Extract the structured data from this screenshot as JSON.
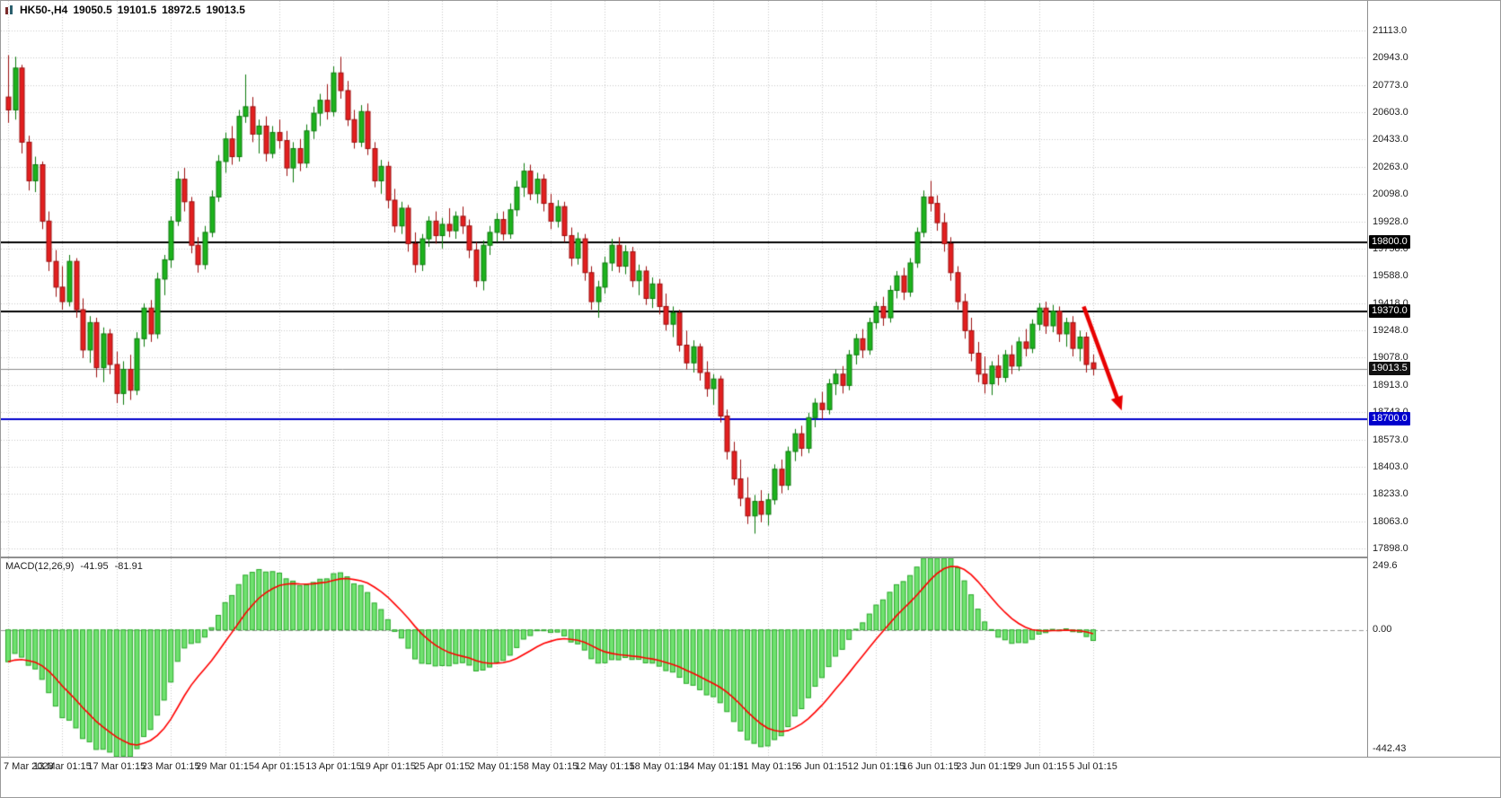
{
  "title": {
    "symbol_tf": "HK50-,H4",
    "open": "19050.5",
    "high": "19101.5",
    "low": "18972.5",
    "close": "19013.5"
  },
  "macd": {
    "name": "MACD(12,26,9)",
    "value": "-41.95",
    "signal_value": "-81.91"
  },
  "chart_data": {
    "type": "candlestick",
    "symbol": "HK50",
    "timeframe": "H4",
    "y_axis": {
      "top_value": 21113.0,
      "bottom_value": 17898.0,
      "ticks": [
        "21113.0",
        "20943.0",
        "20773.0",
        "20603.0",
        "20433.0",
        "20263.0",
        "20098.0",
        "19928.0",
        "19758.0",
        "19588.0",
        "19418.0",
        "19248.0",
        "19078.0",
        "18913.0",
        "18743.0",
        "18573.0",
        "18403.0",
        "18233.0",
        "18063.0",
        "17898.0"
      ]
    },
    "x_axis": {
      "label_every_bars": 8,
      "labels": [
        "7 Mar 2023",
        "13 Mar 01:15",
        "17 Mar 01:15",
        "23 Mar 01:15",
        "29 Mar 01:15",
        "4 Apr 01:15",
        "13 Apr 01:15",
        "19 Apr 01:15",
        "25 Apr 01:15",
        "2 May 01:15",
        "8 May 01:15",
        "12 May 01:15",
        "18 May 01:15",
        "24 May 01:15",
        "31 May 01:15",
        "6 Jun 01:15",
        "12 Jun 01:15",
        "16 Jun 01:15",
        "23 Jun 01:15",
        "29 Jun 01:15",
        "5 Jul 01:15"
      ]
    },
    "levels": [
      {
        "price": 19800.0,
        "label": "19800.0",
        "badge": "#000000",
        "line": "#000000",
        "width": 2
      },
      {
        "price": 19370.0,
        "label": "19370.0",
        "badge": "#000000",
        "line": "#000000",
        "width": 2
      },
      {
        "price": 18700.0,
        "label": "18700.0",
        "badge": "#0000cc",
        "line": "#0000cc",
        "width": 2
      },
      {
        "price": 19013.5,
        "label": "19013.5",
        "badge": "#111111",
        "line": "#8a8a8a",
        "width": 1
      }
    ],
    "annotations": {
      "arrow": {
        "from_bar": 158.6,
        "from_price": 19400,
        "to_bar": 164.2,
        "to_price": 18755,
        "color": "#e80000"
      }
    },
    "indicator": {
      "type": "macd",
      "params": [
        12,
        26,
        9
      ],
      "scale_max": 249.6,
      "scale_min": -442.43,
      "ticks": [
        "249.6",
        "0.00",
        "-442.43"
      ],
      "start_value": -120
    },
    "colors": {
      "background": "#ffffff",
      "grid": "#c9c9c9",
      "bull_body": "#1db31d",
      "bull_border": "#0d7a0d",
      "bear_body": "#e32020",
      "bear_border": "#9c0f0f",
      "hist_fill": "#6fe26f",
      "hist_border": "#2aa82a",
      "signal_line": "#ff0000"
    },
    "candles": [
      [
        20700,
        20960,
        20540,
        20620
      ],
      [
        20620,
        20950,
        20560,
        20880
      ],
      [
        20880,
        20900,
        20350,
        20420
      ],
      [
        20420,
        20460,
        20120,
        20180
      ],
      [
        20180,
        20330,
        20110,
        20280
      ],
      [
        20280,
        20300,
        19880,
        19930
      ],
      [
        19930,
        19990,
        19620,
        19680
      ],
      [
        19680,
        19750,
        19460,
        19520
      ],
      [
        19520,
        19650,
        19380,
        19430
      ],
      [
        19430,
        19720,
        19400,
        19680
      ],
      [
        19680,
        19700,
        19330,
        19380
      ],
      [
        19380,
        19450,
        19080,
        19130
      ],
      [
        19130,
        19340,
        19050,
        19300
      ],
      [
        19300,
        19330,
        18960,
        19020
      ],
      [
        19020,
        19270,
        18930,
        19230
      ],
      [
        19230,
        19260,
        18980,
        19040
      ],
      [
        19040,
        19120,
        18800,
        18860
      ],
      [
        18860,
        19060,
        18790,
        19010
      ],
      [
        19010,
        19100,
        18820,
        18880
      ],
      [
        18880,
        19240,
        18850,
        19200
      ],
      [
        19200,
        19420,
        19150,
        19390
      ],
      [
        19390,
        19440,
        19180,
        19230
      ],
      [
        19230,
        19610,
        19200,
        19570
      ],
      [
        19570,
        19720,
        19470,
        19690
      ],
      [
        19690,
        19960,
        19640,
        19930
      ],
      [
        19930,
        20240,
        19900,
        20190
      ],
      [
        20190,
        20260,
        19990,
        20050
      ],
      [
        20050,
        20080,
        19730,
        19780
      ],
      [
        19780,
        19830,
        19610,
        19660
      ],
      [
        19660,
        19900,
        19630,
        19860
      ],
      [
        19860,
        20120,
        19830,
        20080
      ],
      [
        20080,
        20340,
        20050,
        20300
      ],
      [
        20300,
        20480,
        20230,
        20440
      ],
      [
        20440,
        20520,
        20280,
        20330
      ],
      [
        20330,
        20620,
        20300,
        20580
      ],
      [
        20580,
        20840,
        20540,
        20640
      ],
      [
        20640,
        20700,
        20420,
        20470
      ],
      [
        20470,
        20560,
        20350,
        20520
      ],
      [
        20520,
        20580,
        20300,
        20350
      ],
      [
        20350,
        20520,
        20320,
        20480
      ],
      [
        20480,
        20560,
        20380,
        20430
      ],
      [
        20430,
        20490,
        20210,
        20260
      ],
      [
        20260,
        20420,
        20170,
        20380
      ],
      [
        20380,
        20440,
        20240,
        20290
      ],
      [
        20290,
        20530,
        20260,
        20490
      ],
      [
        20490,
        20640,
        20440,
        20600
      ],
      [
        20600,
        20720,
        20520,
        20680
      ],
      [
        20680,
        20780,
        20560,
        20610
      ],
      [
        20610,
        20890,
        20580,
        20850
      ],
      [
        20850,
        20950,
        20690,
        20740
      ],
      [
        20740,
        20800,
        20520,
        20560
      ],
      [
        20560,
        20620,
        20380,
        20420
      ],
      [
        20420,
        20650,
        20390,
        20610
      ],
      [
        20610,
        20660,
        20340,
        20380
      ],
      [
        20380,
        20420,
        20140,
        20180
      ],
      [
        20180,
        20310,
        20100,
        20270
      ],
      [
        20270,
        20300,
        20010,
        20060
      ],
      [
        20060,
        20130,
        19860,
        19900
      ],
      [
        19900,
        20050,
        19850,
        20010
      ],
      [
        20010,
        20030,
        19740,
        19790
      ],
      [
        19790,
        19860,
        19610,
        19660
      ],
      [
        19660,
        19850,
        19620,
        19820
      ],
      [
        19820,
        19960,
        19770,
        19930
      ],
      [
        19930,
        19990,
        19790,
        19840
      ],
      [
        19840,
        19950,
        19760,
        19910
      ],
      [
        19910,
        20010,
        19830,
        19870
      ],
      [
        19870,
        19990,
        19820,
        19960
      ],
      [
        19960,
        20020,
        19850,
        19900
      ],
      [
        19900,
        19940,
        19700,
        19750
      ],
      [
        19750,
        19800,
        19520,
        19560
      ],
      [
        19560,
        19810,
        19500,
        19780
      ],
      [
        19780,
        19900,
        19720,
        19860
      ],
      [
        19860,
        19980,
        19800,
        19940
      ],
      [
        19940,
        19990,
        19810,
        19850
      ],
      [
        19850,
        20040,
        19820,
        20000
      ],
      [
        20000,
        20180,
        19960,
        20140
      ],
      [
        20140,
        20290,
        20080,
        20240
      ],
      [
        20240,
        20280,
        20060,
        20100
      ],
      [
        20100,
        20230,
        20040,
        20190
      ],
      [
        20190,
        20220,
        19990,
        20040
      ],
      [
        20040,
        20100,
        19880,
        19930
      ],
      [
        19930,
        20060,
        19890,
        20020
      ],
      [
        20020,
        20050,
        19800,
        19840
      ],
      [
        19840,
        19890,
        19650,
        19700
      ],
      [
        19700,
        19860,
        19660,
        19820
      ],
      [
        19820,
        19850,
        19560,
        19610
      ],
      [
        19610,
        19650,
        19380,
        19430
      ],
      [
        19430,
        19560,
        19330,
        19520
      ],
      [
        19520,
        19710,
        19480,
        19670
      ],
      [
        19670,
        19820,
        19620,
        19780
      ],
      [
        19780,
        19830,
        19610,
        19650
      ],
      [
        19650,
        19780,
        19600,
        19740
      ],
      [
        19740,
        19770,
        19520,
        19560
      ],
      [
        19560,
        19660,
        19470,
        19620
      ],
      [
        19620,
        19650,
        19410,
        19450
      ],
      [
        19450,
        19580,
        19390,
        19540
      ],
      [
        19540,
        19570,
        19350,
        19400
      ],
      [
        19400,
        19480,
        19250,
        19290
      ],
      [
        19290,
        19400,
        19210,
        19360
      ],
      [
        19360,
        19380,
        19120,
        19160
      ],
      [
        19160,
        19250,
        19010,
        19050
      ],
      [
        19050,
        19190,
        18990,
        19150
      ],
      [
        19150,
        19170,
        18940,
        18990
      ],
      [
        18990,
        19060,
        18840,
        18890
      ],
      [
        18890,
        18980,
        18790,
        18950
      ],
      [
        18950,
        18970,
        18680,
        18720
      ],
      [
        18720,
        18760,
        18450,
        18500
      ],
      [
        18500,
        18560,
        18290,
        18330
      ],
      [
        18330,
        18450,
        18160,
        18210
      ],
      [
        18210,
        18340,
        18050,
        18100
      ],
      [
        18100,
        18230,
        17990,
        18190
      ],
      [
        18190,
        18260,
        18060,
        18110
      ],
      [
        18110,
        18240,
        18040,
        18200
      ],
      [
        18200,
        18420,
        18170,
        18390
      ],
      [
        18390,
        18450,
        18240,
        18290
      ],
      [
        18290,
        18530,
        18260,
        18500
      ],
      [
        18500,
        18640,
        18440,
        18610
      ],
      [
        18610,
        18660,
        18470,
        18520
      ],
      [
        18520,
        18740,
        18490,
        18710
      ],
      [
        18710,
        18830,
        18650,
        18800
      ],
      [
        18800,
        18870,
        18700,
        18760
      ],
      [
        18760,
        18950,
        18730,
        18920
      ],
      [
        18920,
        19010,
        18850,
        18980
      ],
      [
        18980,
        19030,
        18860,
        18910
      ],
      [
        18910,
        19130,
        18880,
        19100
      ],
      [
        19100,
        19230,
        19040,
        19200
      ],
      [
        19200,
        19260,
        19080,
        19130
      ],
      [
        19130,
        19330,
        19100,
        19300
      ],
      [
        19300,
        19430,
        19260,
        19400
      ],
      [
        19400,
        19460,
        19280,
        19330
      ],
      [
        19330,
        19530,
        19300,
        19500
      ],
      [
        19500,
        19620,
        19450,
        19590
      ],
      [
        19590,
        19640,
        19440,
        19490
      ],
      [
        19490,
        19700,
        19460,
        19670
      ],
      [
        19670,
        19890,
        19640,
        19860
      ],
      [
        19860,
        20120,
        19830,
        20080
      ],
      [
        20080,
        20180,
        19990,
        20040
      ],
      [
        20040,
        20090,
        19870,
        19920
      ],
      [
        19920,
        19980,
        19740,
        19790
      ],
      [
        19790,
        19830,
        19560,
        19610
      ],
      [
        19610,
        19650,
        19380,
        19430
      ],
      [
        19430,
        19480,
        19200,
        19250
      ],
      [
        19250,
        19330,
        19060,
        19110
      ],
      [
        19110,
        19180,
        18930,
        18980
      ],
      [
        18980,
        19090,
        18860,
        18920
      ],
      [
        18920,
        19060,
        18850,
        19030
      ],
      [
        19030,
        19100,
        18910,
        18960
      ],
      [
        18960,
        19130,
        18930,
        19100
      ],
      [
        19100,
        19160,
        18980,
        19030
      ],
      [
        19030,
        19210,
        19000,
        19180
      ],
      [
        19180,
        19260,
        19090,
        19140
      ],
      [
        19140,
        19320,
        19110,
        19290
      ],
      [
        19290,
        19420,
        19250,
        19390
      ],
      [
        19390,
        19430,
        19230,
        19280
      ],
      [
        19280,
        19410,
        19240,
        19370
      ],
      [
        19370,
        19400,
        19180,
        19230
      ],
      [
        19230,
        19330,
        19150,
        19300
      ],
      [
        19300,
        19340,
        19090,
        19140
      ],
      [
        19140,
        19250,
        19060,
        19210
      ],
      [
        19210,
        19240,
        18990,
        19040
      ],
      [
        19050.5,
        19101.5,
        18972.5,
        19013.5
      ]
    ]
  }
}
